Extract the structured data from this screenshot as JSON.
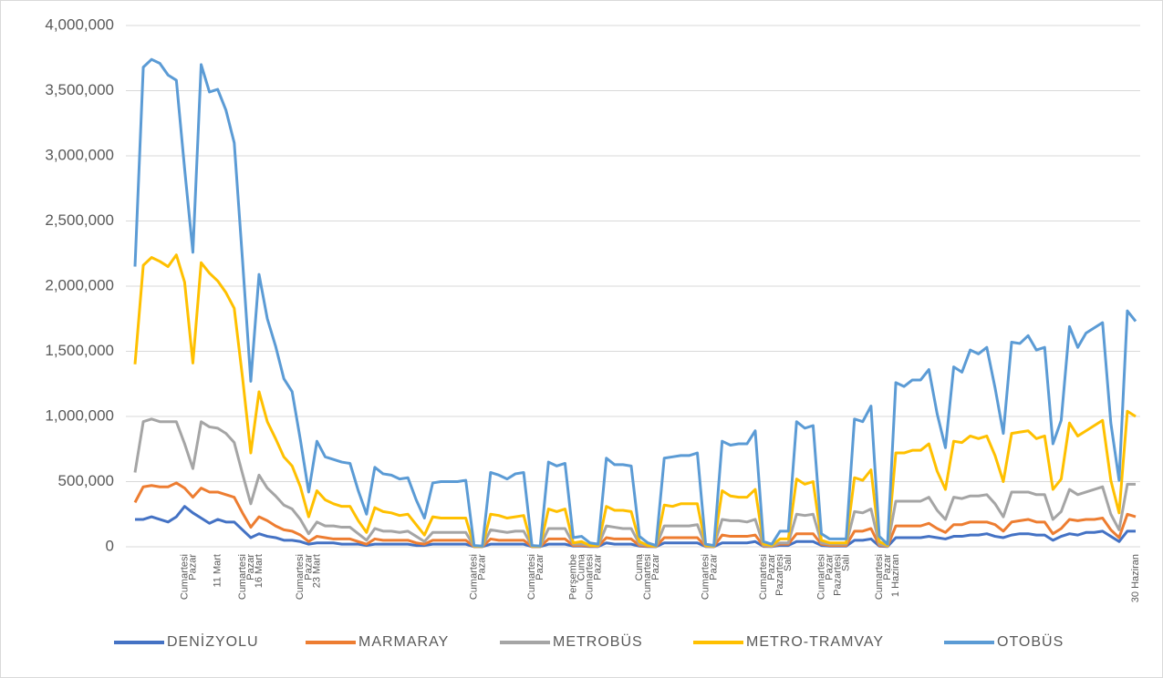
{
  "chart_data": {
    "type": "line",
    "categories": [
      null,
      null,
      null,
      null,
      null,
      null,
      "Cumartesi",
      "Pazar",
      null,
      null,
      "11 Mart",
      null,
      null,
      "Cumartesi",
      "Pazar",
      "16 Mart",
      null,
      null,
      null,
      null,
      "Cumartesi",
      "Pazar",
      "23 Mart",
      null,
      null,
      null,
      null,
      null,
      null,
      null,
      null,
      null,
      null,
      null,
      null,
      null,
      null,
      null,
      null,
      null,
      null,
      "Cumartesi",
      "Pazar",
      null,
      null,
      null,
      null,
      null,
      "Cumartesi",
      "Pazar",
      null,
      null,
      null,
      "Perşembe",
      "Cuma",
      "Cumartesi",
      "Pazar",
      null,
      null,
      null,
      null,
      "Cuma",
      "Cumartesi",
      "Pazar",
      null,
      null,
      null,
      null,
      null,
      "Cumartesi",
      "Pazar",
      null,
      null,
      null,
      null,
      null,
      "Cumartesi",
      "Pazar",
      "Pazartesi",
      "Salı",
      null,
      null,
      null,
      "Cumartesi",
      "Pazar",
      "Pazartesi",
      "Salı",
      null,
      null,
      null,
      "Cumartesi",
      "Pazar",
      "1 Haziran",
      null,
      null,
      null,
      null,
      null,
      null,
      null,
      null,
      null,
      null,
      null,
      null,
      null,
      null,
      null,
      null,
      null,
      null,
      null,
      null,
      null,
      null,
      null,
      null,
      null,
      null,
      null,
      null,
      "30 Haziran"
    ],
    "series": [
      {
        "name": "DENİZYOLU",
        "color": "#4472c4",
        "values": [
          210000,
          210000,
          230000,
          210000,
          190000,
          230000,
          310000,
          260000,
          220000,
          180000,
          210000,
          190000,
          190000,
          130000,
          70000,
          100000,
          80000,
          70000,
          50000,
          50000,
          40000,
          20000,
          30000,
          30000,
          30000,
          20000,
          20000,
          20000,
          10000,
          20000,
          20000,
          20000,
          20000,
          20000,
          10000,
          10000,
          20000,
          20000,
          20000,
          20000,
          20000,
          1000,
          1000,
          20000,
          20000,
          20000,
          20000,
          20000,
          1000,
          1000,
          20000,
          20000,
          20000,
          5000,
          5000,
          2000,
          2000,
          30000,
          20000,
          20000,
          20000,
          5000,
          2000,
          1000,
          30000,
          30000,
          30000,
          30000,
          30000,
          2000,
          1000,
          30000,
          30000,
          30000,
          30000,
          40000,
          3000,
          2000,
          10000,
          10000,
          40000,
          40000,
          40000,
          10000,
          5000,
          5000,
          5000,
          50000,
          50000,
          60000,
          5000,
          2000,
          70000,
          70000,
          70000,
          70000,
          80000,
          70000,
          60000,
          80000,
          80000,
          90000,
          90000,
          100000,
          80000,
          70000,
          90000,
          100000,
          100000,
          90000,
          90000,
          50000,
          80000,
          100000,
          90000,
          110000,
          110000,
          120000,
          80000,
          40000,
          120000,
          120000
        ]
      },
      {
        "name": "MARMARAY",
        "color": "#ed7d31",
        "values": [
          340000,
          460000,
          470000,
          460000,
          460000,
          490000,
          450000,
          380000,
          450000,
          420000,
          420000,
          400000,
          380000,
          260000,
          150000,
          230000,
          200000,
          160000,
          130000,
          120000,
          90000,
          40000,
          80000,
          70000,
          60000,
          60000,
          60000,
          40000,
          20000,
          60000,
          50000,
          50000,
          50000,
          50000,
          30000,
          20000,
          50000,
          50000,
          50000,
          50000,
          50000,
          1000,
          1000,
          60000,
          50000,
          50000,
          50000,
          50000,
          1000,
          1000,
          60000,
          60000,
          60000,
          10000,
          10000,
          5000,
          3000,
          70000,
          60000,
          60000,
          60000,
          10000,
          5000,
          2000,
          70000,
          70000,
          70000,
          70000,
          70000,
          3000,
          2000,
          90000,
          80000,
          80000,
          80000,
          90000,
          5000,
          3000,
          20000,
          20000,
          100000,
          100000,
          100000,
          20000,
          10000,
          10000,
          10000,
          120000,
          120000,
          140000,
          10000,
          3000,
          160000,
          160000,
          160000,
          160000,
          180000,
          140000,
          110000,
          170000,
          170000,
          190000,
          190000,
          190000,
          170000,
          120000,
          190000,
          200000,
          210000,
          190000,
          190000,
          100000,
          140000,
          210000,
          200000,
          210000,
          210000,
          220000,
          130000,
          70000,
          250000,
          230000
        ]
      },
      {
        "name": "METROBÜS",
        "color": "#a5a5a5",
        "values": [
          570000,
          960000,
          980000,
          960000,
          960000,
          960000,
          790000,
          600000,
          960000,
          920000,
          910000,
          870000,
          800000,
          560000,
          330000,
          550000,
          450000,
          390000,
          320000,
          290000,
          210000,
          100000,
          190000,
          160000,
          160000,
          150000,
          150000,
          100000,
          50000,
          140000,
          120000,
          120000,
          110000,
          120000,
          80000,
          40000,
          110000,
          110000,
          110000,
          110000,
          110000,
          3000,
          2000,
          130000,
          120000,
          110000,
          120000,
          120000,
          3000,
          2000,
          140000,
          140000,
          140000,
          20000,
          20000,
          10000,
          5000,
          160000,
          150000,
          140000,
          140000,
          20000,
          10000,
          3000,
          160000,
          160000,
          160000,
          160000,
          170000,
          5000,
          3000,
          210000,
          200000,
          200000,
          190000,
          210000,
          10000,
          5000,
          30000,
          30000,
          250000,
          240000,
          250000,
          30000,
          20000,
          20000,
          20000,
          270000,
          260000,
          290000,
          20000,
          5000,
          350000,
          350000,
          350000,
          350000,
          380000,
          280000,
          210000,
          380000,
          370000,
          390000,
          390000,
          400000,
          330000,
          230000,
          420000,
          420000,
          420000,
          400000,
          400000,
          210000,
          270000,
          440000,
          400000,
          420000,
          440000,
          460000,
          250000,
          130000,
          480000,
          480000
        ]
      },
      {
        "name": "METRO-TRAMVAY",
        "color": "#ffc000",
        "values": [
          1400000,
          2160000,
          2220000,
          2190000,
          2150000,
          2240000,
          2030000,
          1410000,
          2180000,
          2100000,
          2040000,
          1950000,
          1830000,
          1300000,
          720000,
          1190000,
          960000,
          830000,
          690000,
          620000,
          460000,
          230000,
          430000,
          360000,
          330000,
          310000,
          310000,
          200000,
          110000,
          300000,
          270000,
          260000,
          240000,
          250000,
          170000,
          90000,
          230000,
          220000,
          220000,
          220000,
          220000,
          5000,
          3000,
          250000,
          240000,
          220000,
          230000,
          240000,
          5000,
          3000,
          290000,
          270000,
          290000,
          30000,
          40000,
          10000,
          10000,
          310000,
          280000,
          280000,
          270000,
          40000,
          10000,
          5000,
          320000,
          310000,
          330000,
          330000,
          330000,
          10000,
          5000,
          430000,
          390000,
          380000,
          380000,
          440000,
          20000,
          10000,
          60000,
          60000,
          520000,
          480000,
          500000,
          50000,
          30000,
          30000,
          30000,
          530000,
          510000,
          590000,
          40000,
          10000,
          720000,
          720000,
          740000,
          740000,
          790000,
          580000,
          440000,
          810000,
          800000,
          850000,
          830000,
          850000,
          700000,
          500000,
          870000,
          880000,
          890000,
          830000,
          850000,
          440000,
          520000,
          950000,
          850000,
          890000,
          930000,
          970000,
          510000,
          260000,
          1040000,
          1000000
        ]
      },
      {
        "name": "OTOBÜS",
        "color": "#5b9bd5",
        "values": [
          2150000,
          3680000,
          3740000,
          3710000,
          3620000,
          3580000,
          2900000,
          2260000,
          3700000,
          3490000,
          3510000,
          3350000,
          3100000,
          2200000,
          1270000,
          2090000,
          1750000,
          1540000,
          1290000,
          1190000,
          820000,
          420000,
          810000,
          690000,
          670000,
          650000,
          640000,
          430000,
          250000,
          610000,
          560000,
          550000,
          520000,
          530000,
          360000,
          220000,
          490000,
          500000,
          500000,
          500000,
          510000,
          10000,
          5000,
          570000,
          550000,
          520000,
          560000,
          570000,
          10000,
          5000,
          650000,
          620000,
          640000,
          70000,
          80000,
          30000,
          20000,
          680000,
          630000,
          630000,
          620000,
          80000,
          30000,
          10000,
          680000,
          690000,
          700000,
          700000,
          720000,
          20000,
          10000,
          810000,
          780000,
          790000,
          790000,
          890000,
          40000,
          20000,
          120000,
          120000,
          960000,
          910000,
          930000,
          100000,
          60000,
          60000,
          60000,
          980000,
          960000,
          1080000,
          80000,
          20000,
          1260000,
          1230000,
          1280000,
          1280000,
          1360000,
          1020000,
          760000,
          1380000,
          1340000,
          1510000,
          1480000,
          1530000,
          1220000,
          870000,
          1570000,
          1560000,
          1620000,
          1510000,
          1530000,
          790000,
          970000,
          1690000,
          1530000,
          1640000,
          1680000,
          1720000,
          950000,
          510000,
          1810000,
          1730000
        ]
      }
    ],
    "ylim": [
      0,
      4000000
    ],
    "yticks": [
      0,
      {
        "value": 500000,
        "label": "500,000"
      },
      {
        "value": 1000000,
        "label": "1,000,000"
      },
      {
        "value": 1500000,
        "label": "1,500,000"
      },
      {
        "value": 2000000,
        "label": "2,000,000"
      },
      {
        "value": 2500000,
        "label": "2,500,000"
      },
      {
        "value": 3000000,
        "label": "3,000,000"
      },
      {
        "value": 3500000,
        "label": "3,500,000"
      },
      {
        "value": 4000000,
        "label": "4,000,000"
      }
    ],
    "grid": true,
    "legend": "bottom"
  }
}
